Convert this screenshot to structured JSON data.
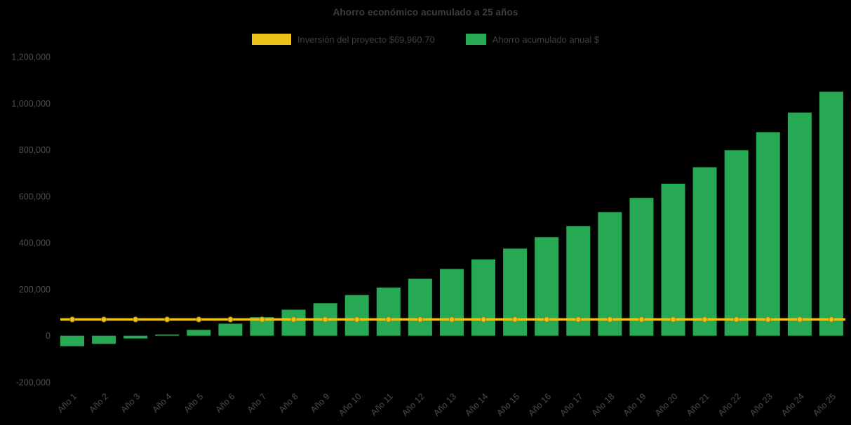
{
  "chart_data": {
    "type": "bar",
    "title": "Ahorro económico acumulado a 25 años",
    "background": "#000000",
    "legend_position": "top",
    "grid": false,
    "xlabel": "",
    "ylabel": "",
    "ylim": [
      -200000,
      1200000
    ],
    "yticks": [
      -200000,
      0,
      200000,
      400000,
      600000,
      800000,
      1000000,
      1200000
    ],
    "categories": [
      "Año 1",
      "Año 2",
      "Año 3",
      "Año 4",
      "Año 5",
      "Año 6",
      "Año 7",
      "Año 8",
      "Año 9",
      "Año 10",
      "Año 11",
      "Año 12",
      "Año 13",
      "Año 14",
      "Año 15",
      "Año 16",
      "Año 17",
      "Año 18",
      "Año 19",
      "Año 20",
      "Año 21",
      "Año 22",
      "Año 23",
      "Año 24",
      "Año 25"
    ],
    "series": [
      {
        "name": "Inversión del proyecto $69,960.70",
        "type": "line",
        "color": "#eec219",
        "marker_edge": "#a8860b",
        "value": 69960.7
      },
      {
        "name": "Ahorro acumulado anual $",
        "type": "bar",
        "color": "#27a853",
        "values": [
          -45000,
          -35000,
          -12000,
          5000,
          25000,
          52000,
          80000,
          112000,
          140000,
          175000,
          207000,
          245000,
          287000,
          328000,
          375000,
          424000,
          472000,
          532000,
          593000,
          654000,
          725000,
          798000,
          876000,
          960000,
          1050000
        ]
      }
    ]
  }
}
